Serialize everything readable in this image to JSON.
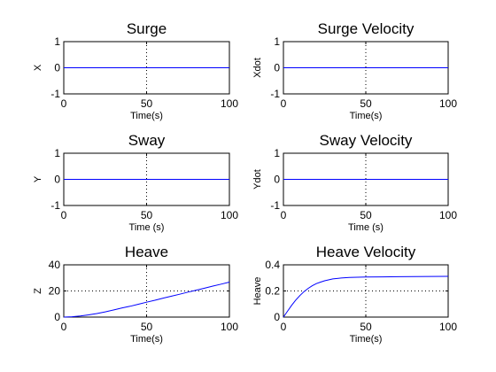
{
  "colors": {
    "series": "#0000ff",
    "axes": "#000000",
    "grid": "#000000",
    "background": "#ffffff"
  },
  "chart_data": [
    {
      "type": "line",
      "title": "Surge",
      "xlabel": "Time(s)",
      "ylabel": "X",
      "xlim": [
        0,
        100
      ],
      "ylim": [
        -1,
        1
      ],
      "xticks": [
        0,
        50,
        100
      ],
      "yticks": [
        -1,
        0,
        1
      ],
      "grid": "dotted",
      "series": [
        {
          "x": [
            0,
            100
          ],
          "y": [
            0,
            0
          ]
        }
      ]
    },
    {
      "type": "line",
      "title": "Surge Velocity",
      "xlabel": "Time(s)",
      "ylabel": "Xdot",
      "xlim": [
        0,
        100
      ],
      "ylim": [
        -1,
        1
      ],
      "xticks": [
        0,
        50,
        100
      ],
      "yticks": [
        -1,
        0,
        1
      ],
      "grid": "dotted",
      "series": [
        {
          "x": [
            0,
            100
          ],
          "y": [
            0,
            0
          ]
        }
      ]
    },
    {
      "type": "line",
      "title": "Sway",
      "xlabel": "Time (s)",
      "ylabel": "Y",
      "xlim": [
        0,
        100
      ],
      "ylim": [
        -1,
        1
      ],
      "xticks": [
        0,
        50,
        100
      ],
      "yticks": [
        -1,
        0,
        1
      ],
      "grid": "dotted",
      "series": [
        {
          "x": [
            0,
            100
          ],
          "y": [
            0,
            0
          ]
        }
      ]
    },
    {
      "type": "line",
      "title": "Sway Velocity",
      "xlabel": "Time (s)",
      "ylabel": "Ydot",
      "xlim": [
        0,
        100
      ],
      "ylim": [
        -1,
        1
      ],
      "xticks": [
        0,
        50,
        100
      ],
      "yticks": [
        -1,
        0,
        1
      ],
      "grid": "dotted",
      "series": [
        {
          "x": [
            0,
            100
          ],
          "y": [
            0,
            0
          ]
        }
      ]
    },
    {
      "type": "line",
      "title": "Heave",
      "xlabel": "Time(s)",
      "ylabel": "Z",
      "xlim": [
        0,
        100
      ],
      "ylim": [
        0,
        40
      ],
      "xticks": [
        0,
        50,
        100
      ],
      "yticks": [
        0,
        20,
        40
      ],
      "grid": "dotted",
      "series": [
        {
          "x": [
            0,
            5,
            10,
            15,
            20,
            25,
            30,
            35,
            40,
            45,
            50,
            55,
            60,
            65,
            70,
            75,
            80,
            85,
            90,
            95,
            100
          ],
          "y": [
            0,
            0.3,
            0.9,
            1.7,
            2.7,
            4.0,
            5.4,
            6.9,
            8.3,
            9.8,
            11.4,
            12.9,
            14.5,
            16.0,
            17.5,
            19.1,
            20.6,
            22.1,
            23.7,
            25.2,
            26.8
          ]
        }
      ]
    },
    {
      "type": "line",
      "title": "Heave Velocity",
      "xlabel": "Time(s)",
      "ylabel": "Heave",
      "xlim": [
        0,
        100
      ],
      "ylim": [
        0,
        0.4
      ],
      "xticks": [
        0,
        50,
        100
      ],
      "yticks": [
        0,
        0.2,
        0.4
      ],
      "grid": "dotted",
      "series": [
        {
          "x": [
            0,
            2.5,
            5,
            7.5,
            10,
            12.5,
            15,
            17.5,
            20,
            22.5,
            25,
            30,
            35,
            40,
            45,
            50,
            60,
            70,
            80,
            90,
            100
          ],
          "y": [
            0,
            0.045,
            0.09,
            0.13,
            0.165,
            0.195,
            0.22,
            0.24,
            0.256,
            0.268,
            0.278,
            0.292,
            0.299,
            0.303,
            0.305,
            0.307,
            0.308,
            0.309,
            0.31,
            0.311,
            0.312
          ]
        }
      ]
    }
  ]
}
